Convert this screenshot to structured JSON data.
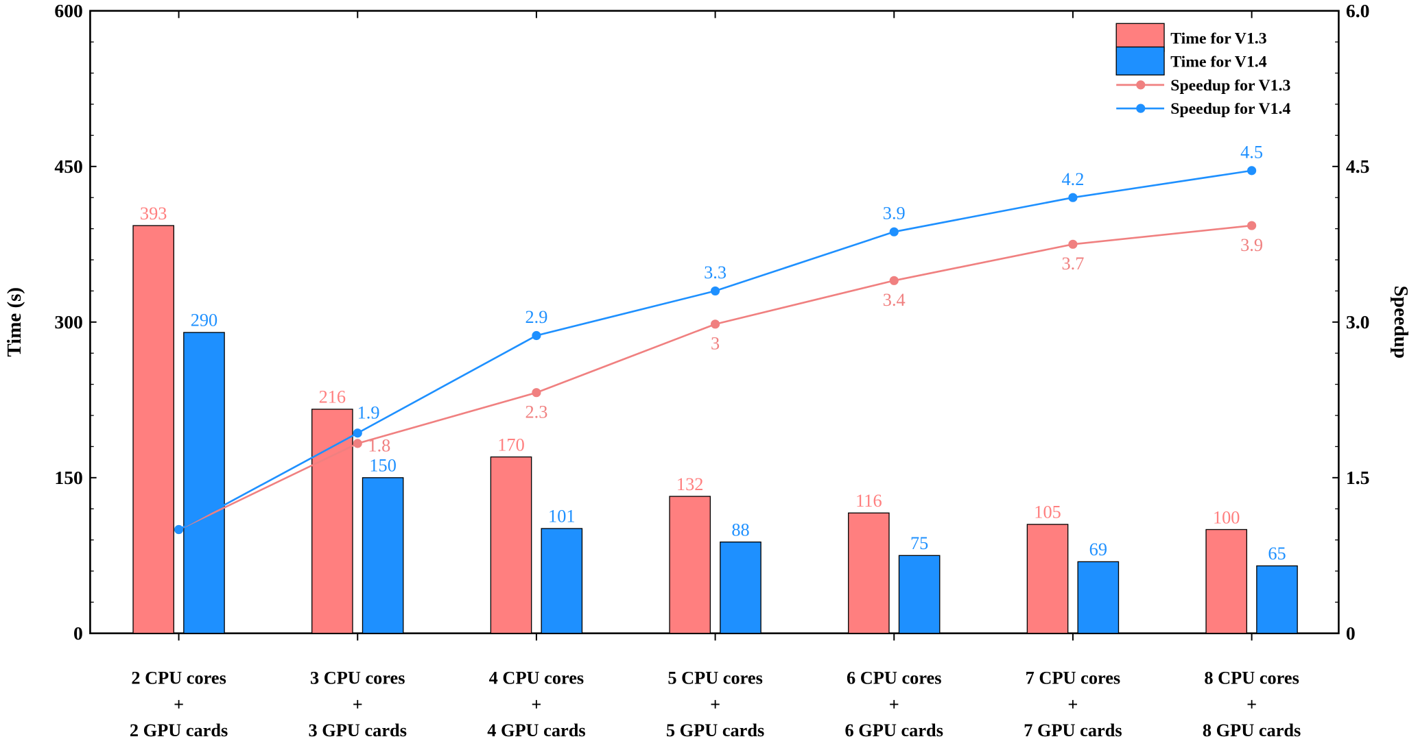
{
  "chart_data": {
    "type": "bar",
    "categories": [
      [
        "2 CPU cores",
        "+",
        "2 GPU cards"
      ],
      [
        "3 CPU cores",
        "+",
        "3 GPU cards"
      ],
      [
        "4 CPU cores",
        "+",
        "4 GPU cards"
      ],
      [
        "5 CPU cores",
        "+",
        "5 GPU cards"
      ],
      [
        "6 CPU cores",
        "+",
        "6 GPU cards"
      ],
      [
        "7 CPU cores",
        "+",
        "7 GPU cards"
      ],
      [
        "8 CPU cores",
        "+",
        "8 GPU cards"
      ]
    ],
    "bar_series": [
      {
        "name": "Time for V1.3",
        "color": "#FF7F7F",
        "values": [
          393,
          216,
          170,
          132,
          116,
          105,
          100
        ],
        "labels": [
          "393",
          "216",
          "170",
          "132",
          "116",
          "105",
          "100"
        ]
      },
      {
        "name": "Time for V1.4",
        "color": "#1E90FF",
        "values": [
          290,
          150,
          101,
          88,
          75,
          69,
          65
        ],
        "labels": [
          "290",
          "150",
          "101",
          "88",
          "75",
          "69",
          "65"
        ]
      }
    ],
    "line_series": [
      {
        "name": "Speedup for V1.3",
        "color": "#F08080",
        "values": [
          1.0,
          1.83,
          2.32,
          2.98,
          3.4,
          3.75,
          3.93
        ],
        "labels": [
          "",
          "1.8",
          "2.3",
          "3",
          "3.4",
          "3.7",
          "3.9"
        ]
      },
      {
        "name": "Speedup for V1.4",
        "color": "#1E90FF",
        "values": [
          1.0,
          1.93,
          2.87,
          3.3,
          3.87,
          4.2,
          4.46
        ],
        "labels": [
          "",
          "1.9",
          "2.9",
          "3.3",
          "3.9",
          "4.2",
          "4.5"
        ]
      }
    ],
    "ylabel": "Time (s)",
    "y2label": "Speedup",
    "ylim": [
      0,
      600
    ],
    "y2lim": [
      0,
      6
    ],
    "yticks": [
      "0",
      "150",
      "300",
      "450",
      "600"
    ],
    "y2ticks": [
      "0",
      "1.5",
      "3.0",
      "4.5",
      "6.0"
    ],
    "legend_position": "top-right",
    "grid": false
  }
}
